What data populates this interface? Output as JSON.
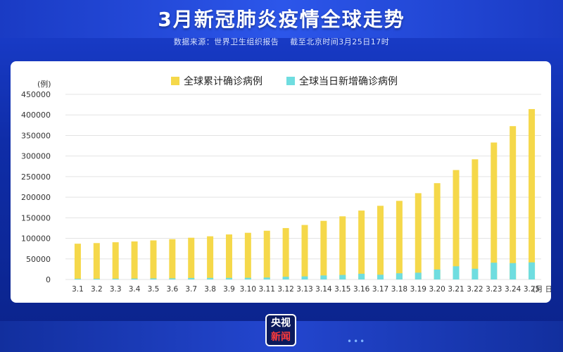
{
  "header": {
    "title": "3月新冠肺炎疫情全球走势",
    "source": "数据来源：世界卫生组织报告",
    "cutoff": "截至北京时间3月25日17时"
  },
  "logo": {
    "line1": "央视",
    "line2": "新闻"
  },
  "footer": {
    "dots": "•••"
  },
  "colors": {
    "cumulative": "#f5d84a",
    "daily": "#6fdde0",
    "grid": "#e3e3e3"
  },
  "chart_data": {
    "type": "bar",
    "yunit": "(例)",
    "xunit": "(月 日)",
    "ylim": [
      0,
      450000
    ],
    "yticks": [
      0,
      50000,
      100000,
      150000,
      200000,
      250000,
      300000,
      350000,
      400000,
      450000
    ],
    "grid": true,
    "legend_position": "top",
    "categories": [
      "3.1",
      "3.2",
      "3.3",
      "3.4",
      "3.5",
      "3.6",
      "3.7",
      "3.8",
      "3.9",
      "3.10",
      "3.11",
      "3.12",
      "3.13",
      "3.14",
      "3.15",
      "3.16",
      "3.17",
      "3.18",
      "3.19",
      "3.20",
      "3.21",
      "3.22",
      "3.23",
      "3.24",
      "3.25"
    ],
    "series": [
      {
        "name": "全球累计确诊病例",
        "color": "#f5d84a",
        "values": [
          87000,
          88500,
          90500,
          92500,
          95000,
          98000,
          101500,
          105000,
          109500,
          113500,
          118500,
          125000,
          132500,
          142500,
          153500,
          167500,
          179100,
          191100,
          209800,
          234100,
          266000,
          292100,
          332900,
          372700,
          414200
        ]
      },
      {
        "name": "全球当日新增确诊病例",
        "color": "#6fdde0",
        "values": [
          1800,
          1800,
          1900,
          2200,
          2600,
          2800,
          3600,
          3800,
          3900,
          4100,
          4700,
          6600,
          7500,
          9800,
          11000,
          13900,
          11500,
          15100,
          16500,
          24200,
          32100,
          26100,
          40800,
          39800,
          41600
        ]
      }
    ]
  }
}
